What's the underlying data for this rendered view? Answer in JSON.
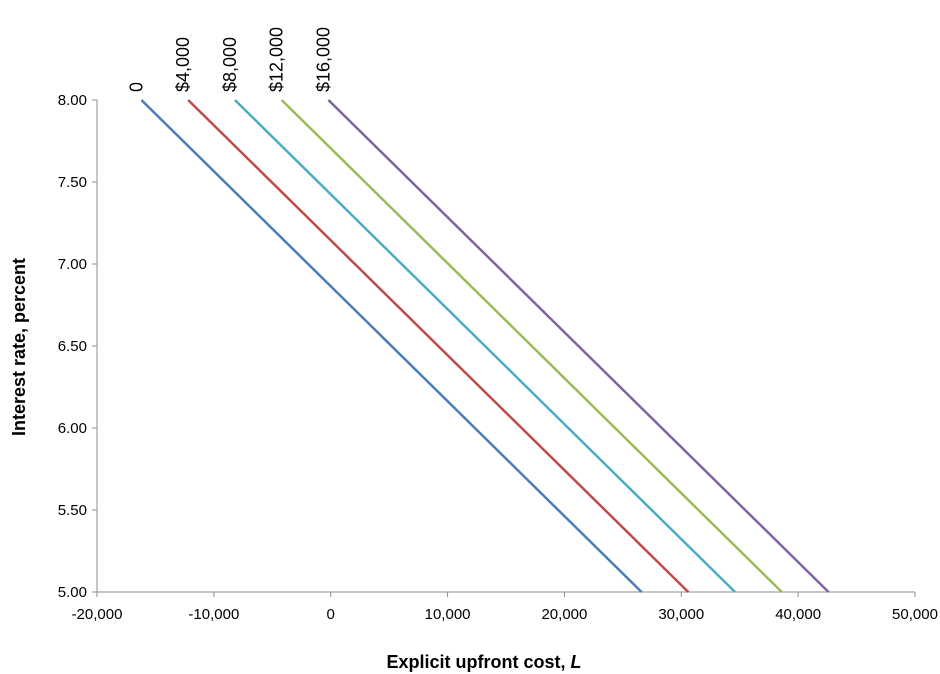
{
  "chart_data": {
    "type": "line",
    "title": "",
    "xlabel": "Explicit upfront cost, ",
    "xlabel_var": "L",
    "ylabel": "Interest rate, percent",
    "xlim": [
      -20000,
      50000
    ],
    "ylim": [
      5.0,
      8.0
    ],
    "x_ticks": [
      -20000,
      -10000,
      0,
      10000,
      20000,
      30000,
      40000,
      50000
    ],
    "x_tick_labels": [
      "-20,000",
      "-10,000",
      "0",
      "10,000",
      "20,000",
      "30,000",
      "40,000",
      "50,000"
    ],
    "y_ticks": [
      5.0,
      5.5,
      6.0,
      6.5,
      7.0,
      7.5,
      8.0
    ],
    "y_tick_labels": [
      "5.00",
      "5.50",
      "6.00",
      "6.50",
      "7.00",
      "7.50",
      "8.00"
    ],
    "grid": false,
    "legend": "labels at top of each line",
    "series": [
      {
        "name": "0",
        "color": "#4a7ebb",
        "x": [
          -16200,
          26600
        ],
        "y": [
          8.0,
          5.0
        ]
      },
      {
        "name": "$4,000",
        "color": "#be4b48",
        "x": [
          -12200,
          30600
        ],
        "y": [
          8.0,
          5.0
        ]
      },
      {
        "name": "$8,000",
        "color": "#4bacc6",
        "x": [
          -8200,
          34600
        ],
        "y": [
          8.0,
          5.0
        ]
      },
      {
        "name": "$12,000",
        "color": "#9bbb59",
        "x": [
          -4200,
          38600
        ],
        "y": [
          8.0,
          5.0
        ]
      },
      {
        "name": "$16,000",
        "color": "#8064a2",
        "x": [
          -200,
          42600
        ],
        "y": [
          8.0,
          5.0
        ]
      }
    ]
  }
}
